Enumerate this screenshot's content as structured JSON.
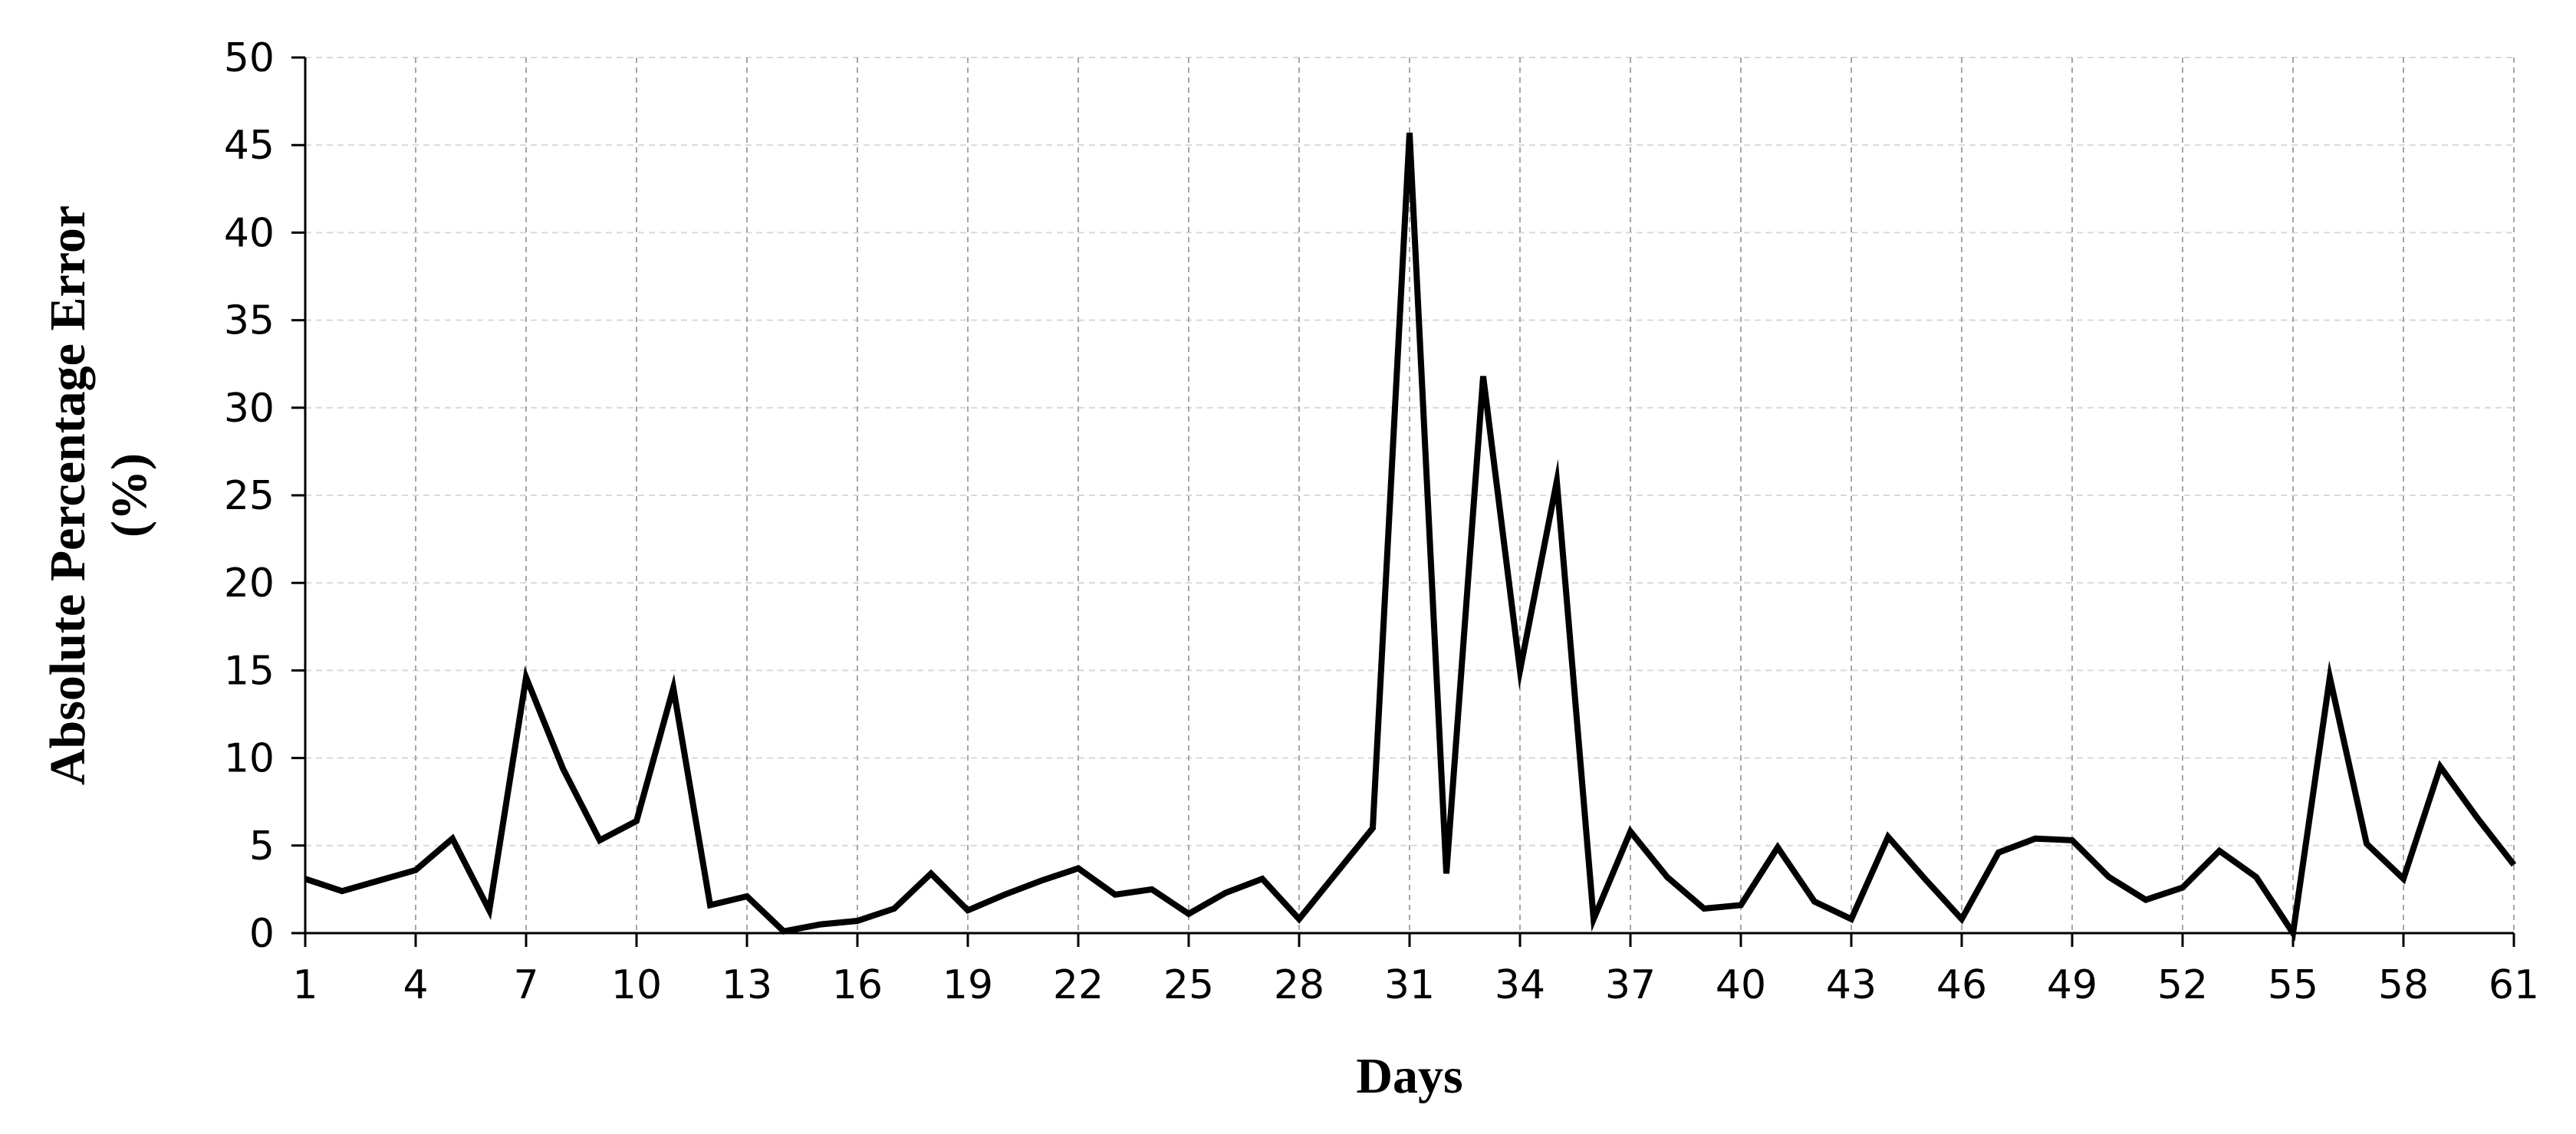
{
  "chart_data": {
    "type": "line",
    "title": "",
    "xlabel": "Days",
    "ylabel_lines": [
      "Absolute Percentage Error",
      "(%)"
    ],
    "x": [
      1,
      2,
      3,
      4,
      5,
      6,
      7,
      8,
      9,
      10,
      11,
      12,
      13,
      14,
      15,
      16,
      17,
      18,
      19,
      20,
      21,
      22,
      23,
      24,
      25,
      26,
      27,
      28,
      29,
      30,
      31,
      32,
      33,
      34,
      35,
      36,
      37,
      38,
      39,
      40,
      41,
      42,
      43,
      44,
      45,
      46,
      47,
      48,
      49,
      50,
      51,
      52,
      53,
      54,
      55,
      56,
      57,
      58,
      59,
      60,
      61
    ],
    "series": [
      {
        "values": [
          3.1,
          2.4,
          3.0,
          3.6,
          5.4,
          1.3,
          14.6,
          9.4,
          5.3,
          6.4,
          14.0,
          1.6,
          2.1,
          0.1,
          0.5,
          0.7,
          1.4,
          3.4,
          1.3,
          2.2,
          3.0,
          3.7,
          2.2,
          2.5,
          1.1,
          2.3,
          3.1,
          0.8,
          3.4,
          6.0,
          45.7,
          3.4,
          31.8,
          15.0,
          25.8,
          0.8,
          5.8,
          3.2,
          1.4,
          1.6,
          4.9,
          1.8,
          0.8,
          5.5,
          3.1,
          0.8,
          4.6,
          5.4,
          5.3,
          3.2,
          1.9,
          2.6,
          4.7,
          3.2,
          0.0,
          14.6,
          5.1,
          3.1,
          9.5,
          6.6,
          3.9
        ],
        "color": "#000000"
      }
    ],
    "x_ticks": [
      1,
      4,
      7,
      10,
      13,
      16,
      19,
      22,
      25,
      28,
      31,
      34,
      37,
      40,
      43,
      46,
      49,
      52,
      55,
      58,
      61
    ],
    "y_ticks": [
      0,
      5,
      10,
      15,
      20,
      25,
      30,
      35,
      40,
      45,
      50
    ],
    "xlim": [
      1,
      61
    ],
    "ylim": [
      0,
      50
    ],
    "grid": true,
    "legend": "none"
  }
}
